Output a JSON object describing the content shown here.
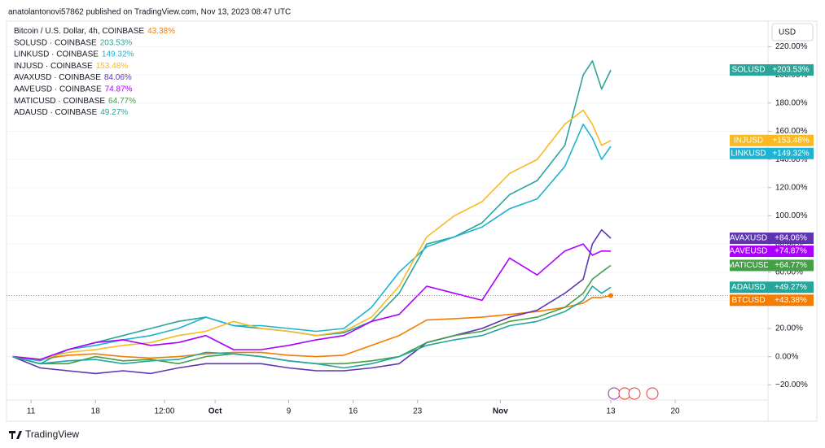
{
  "header": {
    "author_line": "anatolantonovi57862 published on TradingView.com, Nov 13, 2023 08:47 UTC"
  },
  "footer": {
    "brand": "TradingView"
  },
  "currency_button": "USD",
  "chart_data": {
    "type": "line",
    "title": "Bitcoin / U.S. Dollar, 4h, COINBASE",
    "x": [
      "2023-09-09",
      "2023-09-12",
      "2023-09-15",
      "2023-09-18",
      "2023-09-21",
      "2023-09-24",
      "2023-09-27",
      "2023-09-30",
      "2023-10-03",
      "2023-10-06",
      "2023-10-09",
      "2023-10-12",
      "2023-10-15",
      "2023-10-18",
      "2023-10-21",
      "2023-10-24",
      "2023-10-27",
      "2023-10-30",
      "2023-11-02",
      "2023-11-05",
      "2023-11-08",
      "2023-11-10",
      "2023-11-11",
      "2023-11-12",
      "2023-11-13"
    ],
    "xlim": [
      "2023-09-08T08:00",
      "2023-11-30T02:00"
    ],
    "xticks": [
      {
        "value": "2023-09-11",
        "label": "11"
      },
      {
        "value": "2023-09-18",
        "label": "18"
      },
      {
        "value": "2023-09-25T12:00",
        "label": "12:00"
      },
      {
        "value": "2023-10-01",
        "label": "Oct"
      },
      {
        "value": "2023-10-09",
        "label": "9"
      },
      {
        "value": "2023-10-16",
        "label": "16"
      },
      {
        "value": "2023-10-23",
        "label": "23"
      },
      {
        "value": "2023-11-01",
        "label": "Nov"
      },
      {
        "value": "2023-11-13",
        "label": "13"
      },
      {
        "value": "2023-11-20",
        "label": "20"
      }
    ],
    "ylim": [
      -30.8,
      238.2
    ],
    "yticks": [
      {
        "value": -20,
        "label": "−20.00%"
      },
      {
        "value": 0,
        "label": "0.00%"
      },
      {
        "value": 20,
        "label": "20.00%"
      },
      {
        "value": 40,
        "label": "40.00%"
      },
      {
        "value": 60,
        "label": "60.00%"
      },
      {
        "value": 80,
        "label": "80.00%"
      },
      {
        "value": 100,
        "label": "100.00%"
      },
      {
        "value": 120,
        "label": "120.00%"
      },
      {
        "value": 140,
        "label": "140.00%"
      },
      {
        "value": 160,
        "label": "160.00%"
      },
      {
        "value": 180,
        "label": "180.00%"
      },
      {
        "value": 200,
        "label": "200.00%"
      },
      {
        "value": 220,
        "label": "220.00%"
      }
    ],
    "series": [
      {
        "name": "BTCUSD",
        "legend": "Bitcoin / U.S. Dollar, 4h, COINBASE",
        "color": "#f57c00",
        "change_label": "43.38%",
        "badge_label": "+43.38%",
        "main": true,
        "values": [
          0,
          -2,
          1,
          2,
          0,
          -1,
          0,
          2,
          3,
          3,
          1,
          0,
          1,
          8,
          15,
          26,
          27,
          28,
          30,
          32,
          35,
          38,
          42,
          42,
          43.38
        ]
      },
      {
        "name": "SOLUSD",
        "legend": "SOLUSD · COINBASE",
        "color": "#2ba59a",
        "change_label": "203.53%",
        "badge_label": "+203.53%",
        "values": [
          0,
          -5,
          5,
          10,
          15,
          20,
          25,
          28,
          22,
          20,
          18,
          15,
          17,
          25,
          45,
          80,
          85,
          95,
          115,
          125,
          150,
          200,
          210,
          190,
          203.53
        ]
      },
      {
        "name": "LINKUSD",
        "legend": "LINKUSD · COINBASE",
        "color": "#1fb3d1",
        "change_label": "149.32%",
        "badge_label": "+149.32%",
        "values": [
          0,
          -3,
          5,
          8,
          12,
          15,
          20,
          28,
          22,
          22,
          20,
          18,
          20,
          35,
          60,
          78,
          85,
          92,
          105,
          112,
          135,
          165,
          155,
          140,
          149.32
        ]
      },
      {
        "name": "INJUSD",
        "legend": "INJUSD · COINBASE",
        "color": "#f9b922",
        "change_label": "153.48%",
        "badge_label": "+153.48%",
        "values": [
          0,
          -2,
          3,
          5,
          8,
          10,
          15,
          18,
          25,
          20,
          18,
          15,
          18,
          28,
          50,
          85,
          100,
          110,
          130,
          140,
          165,
          175,
          165,
          150,
          153.48
        ]
      },
      {
        "name": "AVAXUSD",
        "legend": "AVAXUSD · COINBASE",
        "color": "#5e35b1",
        "change_label": "84.06%",
        "badge_label": "+84.06%",
        "values": [
          0,
          -8,
          -10,
          -12,
          -10,
          -12,
          -8,
          -5,
          -5,
          -5,
          -8,
          -10,
          -10,
          -8,
          -5,
          10,
          15,
          20,
          28,
          33,
          45,
          55,
          80,
          90,
          84.06
        ]
      },
      {
        "name": "AAVEUSD",
        "legend": "AAVEUSD · COINBASE",
        "color": "#aa00ff",
        "change_label": "74.87%",
        "badge_label": "+74.87%",
        "values": [
          0,
          -2,
          5,
          10,
          12,
          8,
          10,
          15,
          5,
          5,
          8,
          12,
          15,
          25,
          30,
          50,
          45,
          40,
          70,
          58,
          75,
          80,
          72,
          75,
          74.87
        ]
      },
      {
        "name": "MATICUSD",
        "legend": "MATICUSD · COINBASE",
        "color": "#43a047",
        "change_label": "64.77%",
        "badge_label": "+64.77%",
        "values": [
          0,
          -5,
          -5,
          0,
          -3,
          -2,
          -5,
          0,
          2,
          0,
          -3,
          -5,
          -5,
          -3,
          0,
          10,
          15,
          18,
          25,
          28,
          35,
          45,
          55,
          60,
          64.77
        ]
      },
      {
        "name": "ADAUSD",
        "legend": "ADAUSD · COINBASE",
        "color": "#26a69a",
        "change_label": "49.27%",
        "badge_label": "+49.27%",
        "values": [
          0,
          -5,
          -3,
          -2,
          -5,
          -3,
          -2,
          3,
          2,
          0,
          -3,
          -5,
          -8,
          -5,
          0,
          8,
          12,
          15,
          22,
          25,
          32,
          40,
          50,
          45,
          49.27
        ]
      }
    ]
  }
}
